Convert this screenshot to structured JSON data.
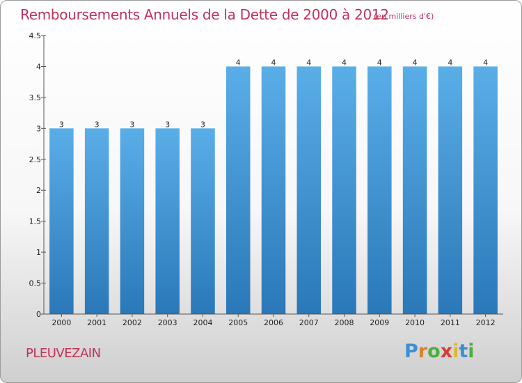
{
  "chart_data": {
    "type": "bar",
    "title": "Remboursements Annuels de la Dette de 2000 à 2012",
    "subtitle": "(en milliers d'€)",
    "categories": [
      "2000",
      "2001",
      "2002",
      "2003",
      "2004",
      "2005",
      "2006",
      "2007",
      "2008",
      "2009",
      "2010",
      "2011",
      "2012"
    ],
    "values": [
      3,
      3,
      3,
      3,
      3,
      4,
      4,
      4,
      4,
      4,
      4,
      4,
      4
    ],
    "data_labels": [
      "3",
      "3",
      "3",
      "3",
      "3",
      "4",
      "4",
      "4",
      "4",
      "4",
      "4",
      "4",
      "4"
    ],
    "ylim": [
      0,
      4.5
    ],
    "yticks": [
      0,
      0.5,
      1,
      1.5,
      2,
      2.5,
      3,
      3.5,
      4,
      4.5
    ],
    "ytick_labels": [
      "0",
      "0.5",
      "1",
      "1.5",
      "2",
      "2.5",
      "3",
      "3.5",
      "4",
      "4.5"
    ],
    "xlabel": "",
    "ylabel": "",
    "grid": false,
    "legend": "none",
    "bar_color_top": "#5aaee8",
    "bar_color_bottom": "#2a78b8"
  },
  "footer": {
    "commune": "PLEUVEZAIN",
    "logo_letters": [
      "P",
      "r",
      "o",
      "x",
      "i",
      "t",
      "i"
    ],
    "logo_colors": [
      "#3a8fd6",
      "#e0802a",
      "#4caf3a",
      "#d63a3a",
      "#e0b82a",
      "#3a8fd6",
      "#4caf3a"
    ]
  },
  "colors": {
    "title": "#c0325a",
    "axis": "#555555"
  }
}
